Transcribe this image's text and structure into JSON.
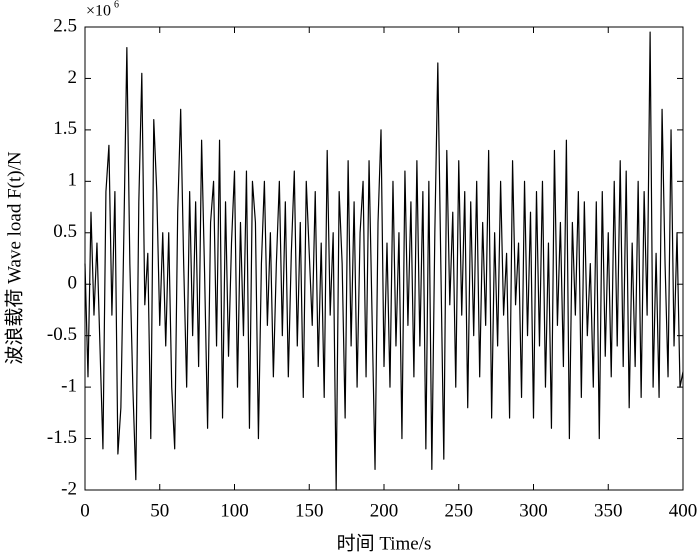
{
  "chart_data": {
    "type": "line",
    "x_label": "时间 Time/s",
    "y_label": "波浪载荷 Wave load F(t)/N",
    "y_multiplier": "×10",
    "y_multiplier_exponent": "6",
    "xlim": [
      0,
      400
    ],
    "xticks": [
      0,
      50,
      100,
      150,
      200,
      250,
      300,
      350,
      400
    ],
    "ylim": [
      -2,
      2.5
    ],
    "yticks": [
      -2,
      -1.5,
      -1,
      -0.5,
      0,
      0.5,
      1,
      1.5,
      2,
      2.5
    ],
    "grid": false,
    "x": [
      0,
      2,
      4,
      6,
      8,
      10,
      12,
      14,
      16,
      18,
      20,
      22,
      24,
      26,
      28,
      30,
      32,
      34,
      36,
      38,
      40,
      42,
      44,
      46,
      48,
      50,
      52,
      54,
      56,
      58,
      60,
      62,
      64,
      66,
      68,
      70,
      72,
      74,
      76,
      78,
      80,
      82,
      84,
      86,
      88,
      90,
      92,
      94,
      96,
      98,
      100,
      102,
      104,
      106,
      108,
      110,
      112,
      114,
      116,
      118,
      120,
      122,
      124,
      126,
      128,
      130,
      132,
      134,
      136,
      138,
      140,
      142,
      144,
      146,
      148,
      150,
      152,
      154,
      156,
      158,
      160,
      162,
      164,
      166,
      168,
      170,
      172,
      174,
      176,
      178,
      180,
      182,
      184,
      186,
      188,
      190,
      192,
      194,
      196,
      198,
      200,
      202,
      204,
      206,
      208,
      210,
      212,
      214,
      216,
      218,
      220,
      222,
      224,
      226,
      228,
      230,
      232,
      234,
      236,
      238,
      240,
      242,
      244,
      246,
      248,
      250,
      252,
      254,
      256,
      258,
      260,
      262,
      264,
      266,
      268,
      270,
      272,
      274,
      276,
      278,
      280,
      282,
      284,
      286,
      288,
      290,
      292,
      294,
      296,
      298,
      300,
      302,
      304,
      306,
      308,
      310,
      312,
      314,
      316,
      318,
      320,
      322,
      324,
      326,
      328,
      330,
      332,
      334,
      336,
      338,
      340,
      342,
      344,
      346,
      348,
      350,
      352,
      354,
      356,
      358,
      360,
      362,
      364,
      366,
      368,
      370,
      372,
      374,
      376,
      378,
      380,
      382,
      384,
      386,
      388,
      390,
      392,
      394,
      396,
      398,
      400
    ],
    "series": [
      {
        "color": "#000000",
        "values": [
          0.2,
          -0.9,
          0.7,
          -0.3,
          0.4,
          -0.6,
          -1.6,
          0.9,
          1.35,
          -0.3,
          0.9,
          -1.65,
          -1.2,
          0.5,
          2.3,
          0.2,
          -1.0,
          -1.9,
          0.8,
          2.05,
          -0.2,
          0.3,
          -1.5,
          1.6,
          0.9,
          -0.4,
          0.5,
          -0.6,
          0.5,
          -1.0,
          -1.6,
          0.7,
          1.7,
          0.2,
          -1.0,
          0.9,
          -0.5,
          0.8,
          -0.8,
          1.4,
          0.1,
          -1.4,
          0.6,
          1.0,
          -0.6,
          1.4,
          -1.3,
          0.8,
          -0.7,
          0.4,
          1.1,
          -1.0,
          0.6,
          -0.5,
          1.1,
          -1.4,
          1.0,
          0.6,
          -1.5,
          0.2,
          1.0,
          -0.4,
          0.5,
          -0.9,
          0.2,
          1.0,
          -0.5,
          0.8,
          -0.9,
          0.3,
          1.1,
          -0.6,
          0.6,
          -1.1,
          1.0,
          0.3,
          -0.4,
          0.9,
          -0.8,
          0.4,
          -1.1,
          1.3,
          -0.3,
          0.5,
          -2.0,
          0.9,
          0.2,
          -1.3,
          1.2,
          -0.6,
          0.8,
          -1.0,
          0.5,
          1.0,
          -0.9,
          1.2,
          -0.3,
          -1.8,
          0.6,
          1.5,
          -0.8,
          0.4,
          -1.0,
          1.0,
          -0.6,
          0.5,
          -1.5,
          1.1,
          -0.4,
          0.8,
          -0.9,
          1.2,
          -0.6,
          0.9,
          -1.6,
          1.0,
          -1.8,
          0.5,
          2.15,
          0.2,
          -1.7,
          1.3,
          -0.2,
          0.7,
          -1.0,
          1.2,
          -0.3,
          0.9,
          -1.2,
          0.8,
          -0.5,
          1.0,
          -0.9,
          0.6,
          -0.4,
          1.3,
          -1.3,
          0.5,
          -0.6,
          1.0,
          -0.3,
          0.3,
          -1.3,
          1.2,
          -0.2,
          0.4,
          -1.1,
          1.0,
          -0.5,
          0.7,
          -1.3,
          0.9,
          -0.6,
          1.0,
          -1.0,
          0.4,
          -1.4,
          1.3,
          -0.4,
          0.6,
          -0.8,
          1.4,
          -1.5,
          0.6,
          -0.3,
          0.9,
          -1.1,
          0.8,
          -0.5,
          0.2,
          -1.0,
          0.8,
          -1.5,
          0.9,
          -0.7,
          0.5,
          -0.9,
          1.0,
          -0.6,
          1.2,
          -0.8,
          1.1,
          -1.2,
          0.4,
          -0.8,
          1.0,
          -1.1,
          0.9,
          -0.3,
          2.45,
          -1.0,
          0.3,
          -1.1,
          1.7,
          0.2,
          -0.9,
          1.5,
          -0.6,
          0.5,
          -1.0,
          -0.85
        ]
      }
    ]
  }
}
